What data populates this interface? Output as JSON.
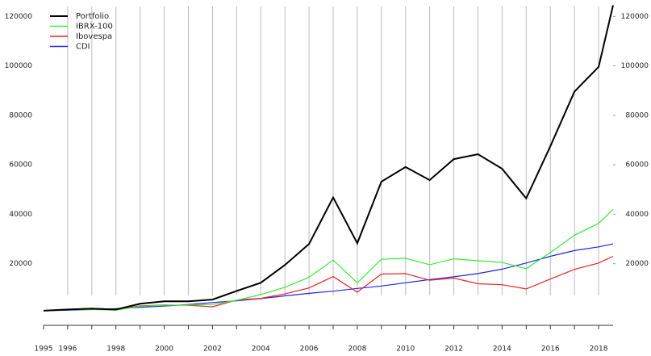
{
  "chart_data": {
    "type": "line",
    "x": [
      1995,
      1996,
      1997,
      1998,
      1999,
      2000,
      2001,
      2002,
      2003,
      2004,
      2005,
      2006,
      2007,
      2008,
      2009,
      2010,
      2011,
      2012,
      2013,
      2014,
      2015,
      2016,
      2017,
      2018,
      2018.6
    ],
    "series": [
      {
        "name": "Portfolio",
        "color": "#000000",
        "values": [
          1000,
          1500,
          1800,
          1500,
          3800,
          4800,
          4800,
          5500,
          9000,
          12300,
          19500,
          28000,
          46800,
          28300,
          53200,
          59100,
          53800,
          62300,
          64300,
          58400,
          46400,
          67500,
          89600,
          99600,
          124500
        ]
      },
      {
        "name": "IBRX-100",
        "color": "#33ee33",
        "values": [
          1000,
          1400,
          1500,
          1200,
          2800,
          3200,
          3300,
          3500,
          5200,
          7500,
          10500,
          14500,
          21500,
          12300,
          21800,
          22200,
          19600,
          22000,
          21200,
          20500,
          18000,
          24500,
          31500,
          36300,
          42000
        ]
      },
      {
        "name": "Ibovespa",
        "color": "#ee2222",
        "values": [
          1000,
          1500,
          2000,
          1600,
          3000,
          3300,
          3200,
          2600,
          5300,
          6000,
          7800,
          10200,
          14800,
          8500,
          15800,
          16000,
          13300,
          14200,
          11900,
          11500,
          9800,
          13800,
          17700,
          20300,
          23000
        ]
      },
      {
        "name": "CDI",
        "color": "#2222ee",
        "values": [
          1000,
          1200,
          1500,
          1800,
          2400,
          2900,
          3500,
          4300,
          5000,
          5900,
          7000,
          8000,
          8900,
          10000,
          11000,
          12300,
          13600,
          14700,
          16000,
          17800,
          20300,
          23000,
          25300,
          26800,
          28000
        ]
      }
    ],
    "xlim": [
      1995,
      2018.6
    ],
    "xticks": [
      1995,
      1996,
      1998,
      2000,
      2002,
      2004,
      2006,
      2008,
      2010,
      2012,
      2014,
      2016,
      2018
    ],
    "minor_xticks": [
      1997,
      1999,
      2001,
      2003,
      2005,
      2007,
      2009,
      2011,
      2013,
      2015,
      2017
    ],
    "ylim": [
      -2300,
      125000
    ],
    "yticks": [
      20000,
      40000,
      60000,
      80000,
      100000,
      120000
    ],
    "grid": true,
    "legend": "top-left"
  }
}
